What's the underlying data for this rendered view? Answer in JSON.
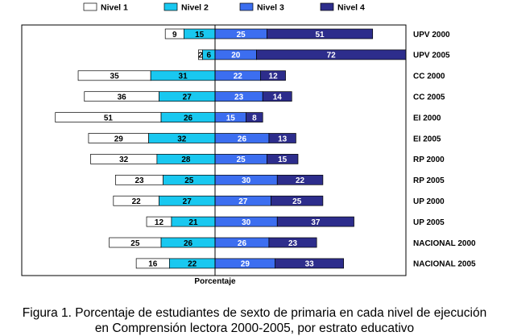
{
  "chart_data": {
    "type": "bar",
    "subtype": "diverging-stacked-horizontal",
    "xlabel": "Porcentaje",
    "legend": [
      "Nivel 1",
      "Nivel 2",
      "Nivel 3",
      "Nivel 4"
    ],
    "legend_position": "top",
    "colors": [
      "#ffffff",
      "#19c8f0",
      "#3c6ef0",
      "#2d2d8c"
    ],
    "categories": [
      "UPV 2000",
      "UPV 2005",
      "CC 2000",
      "CC 2005",
      "EI 2000",
      "EI 2005",
      "RP 2000",
      "RP 2005",
      "UP 2000",
      "UP 2005",
      "NACIONAL 2000",
      "NACIONAL  2005"
    ],
    "series": [
      {
        "name": "Nivel 1",
        "values": [
          9,
          2,
          35,
          36,
          51,
          29,
          32,
          23,
          22,
          12,
          25,
          16
        ],
        "side": "left"
      },
      {
        "name": "Nivel 2",
        "values": [
          15,
          6,
          31,
          27,
          26,
          32,
          28,
          25,
          27,
          21,
          26,
          22
        ],
        "side": "left"
      },
      {
        "name": "Nivel 3",
        "values": [
          25,
          20,
          22,
          23,
          15,
          26,
          25,
          30,
          27,
          30,
          26,
          29
        ],
        "side": "right"
      },
      {
        "name": "Nivel 4",
        "values": [
          51,
          72,
          12,
          14,
          8,
          13,
          15,
          22,
          25,
          37,
          23,
          33
        ],
        "side": "right"
      }
    ]
  },
  "caption": {
    "line1": "Figura 1. Porcentaje de estudiantes de sexto de primaria en cada nivel de ejecución",
    "line2": "en Comprensión lectora 2000-2005, por estrato educativo"
  }
}
